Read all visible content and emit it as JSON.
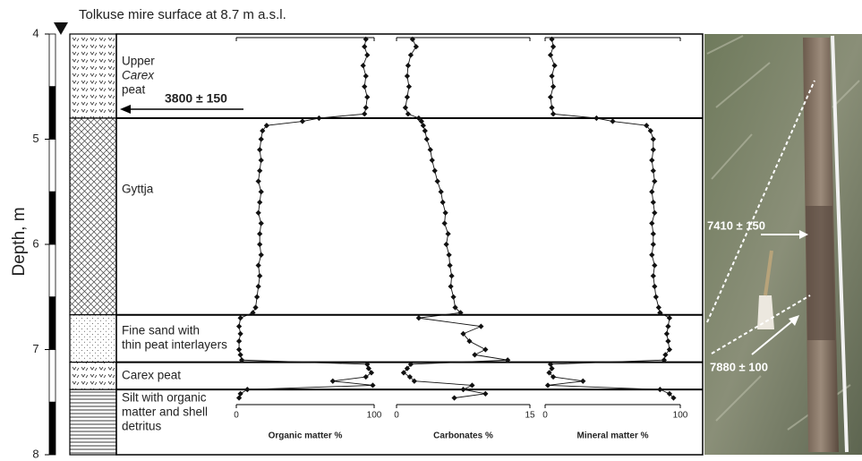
{
  "title": "Tolkuse mire surface at 8.7 m a.s.l.",
  "depth_axis": {
    "label": "Depth, m",
    "lim": [
      4,
      8
    ],
    "ticks": [
      4,
      5,
      6,
      7,
      8
    ]
  },
  "layers": [
    {
      "top": 4,
      "bottom": 4.8,
      "label_lines": [
        "Upper",
        "Carex",
        "peat"
      ]
    },
    {
      "top": 4.8,
      "bottom": 6.67,
      "label_lines": [
        "Gyttja"
      ]
    },
    {
      "top": 6.67,
      "bottom": 7.12,
      "label_lines": [
        "Fine sand with",
        "thin peat interlayers"
      ]
    },
    {
      "top": 7.12,
      "bottom": 7.38,
      "label_lines": [
        "Carex peat"
      ]
    },
    {
      "top": 7.38,
      "bottom": 8,
      "label_lines": [
        "Silt with organic",
        "matter and shell",
        "detritus"
      ]
    }
  ],
  "dates": [
    "3800 ± 150",
    "7410 ± 150",
    "7880 ± 100"
  ],
  "chart_data": [
    {
      "type": "line",
      "xlabel": "Organic matter %",
      "color": "#111",
      "ylim": [
        0,
        100
      ],
      "yticks": [
        0,
        100
      ],
      "x": [
        4.05,
        4.12,
        4.2,
        4.3,
        4.4,
        4.5,
        4.6,
        4.7,
        4.76,
        4.8,
        4.83,
        4.87,
        4.92,
        5.0,
        5.1,
        5.2,
        5.3,
        5.4,
        5.5,
        5.6,
        5.7,
        5.8,
        5.9,
        6.0,
        6.1,
        6.2,
        6.3,
        6.4,
        6.5,
        6.6,
        6.65,
        6.7,
        6.78,
        6.85,
        6.92,
        7.0,
        7.05,
        7.1,
        7.14,
        7.18,
        7.22,
        7.26,
        7.3,
        7.34,
        7.38,
        7.42,
        7.46
      ],
      "values": [
        94,
        93,
        95,
        92,
        94,
        93,
        95,
        94,
        93,
        60,
        48,
        22,
        19,
        18,
        17,
        18,
        17,
        16,
        18,
        17,
        16,
        18,
        17,
        17,
        18,
        16,
        17,
        16,
        15,
        14,
        12,
        3,
        2,
        3,
        2,
        2,
        3,
        4,
        95,
        96,
        98,
        94,
        70,
        99,
        8,
        3,
        2
      ]
    },
    {
      "type": "line",
      "xlabel": "Carbonates %",
      "color": "#111",
      "ylim": [
        0,
        15
      ],
      "yticks": [
        0,
        15
      ],
      "x": [
        4.05,
        4.12,
        4.2,
        4.3,
        4.4,
        4.5,
        4.6,
        4.7,
        4.76,
        4.8,
        4.83,
        4.87,
        4.92,
        5.0,
        5.1,
        5.2,
        5.3,
        5.4,
        5.5,
        5.6,
        5.7,
        5.8,
        5.9,
        6.0,
        6.1,
        6.2,
        6.3,
        6.4,
        6.5,
        6.6,
        6.65,
        6.7,
        6.78,
        6.85,
        6.92,
        7.0,
        7.05,
        7.1,
        7.14,
        7.18,
        7.22,
        7.26,
        7.3,
        7.34,
        7.38,
        7.42,
        7.46
      ],
      "values": [
        1.8,
        2.2,
        1.6,
        1.3,
        1.2,
        1.4,
        1.2,
        1.0,
        1.3,
        2.5,
        2.8,
        3.0,
        3.2,
        3.4,
        3.8,
        4.0,
        4.3,
        4.6,
        5.0,
        5.2,
        5.5,
        5.4,
        5.8,
        5.6,
        5.9,
        6.0,
        6.2,
        6.1,
        6.4,
        6.6,
        7.2,
        2.5,
        9.5,
        7.5,
        8.2,
        10.0,
        8.8,
        12.5,
        1.6,
        1.2,
        0.8,
        1.5,
        2.0,
        8.5,
        7.5,
        10.0,
        6.5
      ]
    },
    {
      "type": "line",
      "xlabel": "Mineral matter %",
      "color": "#111",
      "ylim": [
        0,
        100
      ],
      "yticks": [
        0,
        100
      ],
      "x": [
        4.05,
        4.12,
        4.2,
        4.3,
        4.4,
        4.5,
        4.6,
        4.7,
        4.76,
        4.8,
        4.83,
        4.87,
        4.92,
        5.0,
        5.1,
        5.2,
        5.3,
        5.4,
        5.5,
        5.6,
        5.7,
        5.8,
        5.9,
        6.0,
        6.1,
        6.2,
        6.3,
        6.4,
        6.5,
        6.6,
        6.65,
        6.7,
        6.78,
        6.85,
        6.92,
        7.0,
        7.05,
        7.1,
        7.14,
        7.18,
        7.22,
        7.26,
        7.3,
        7.34,
        7.38,
        7.42,
        7.46
      ],
      "values": [
        5,
        6,
        4,
        7,
        5,
        6,
        4,
        5,
        6,
        38,
        50,
        75,
        78,
        80,
        80,
        79,
        80,
        81,
        79,
        80,
        81,
        79,
        80,
        80,
        79,
        81,
        80,
        81,
        82,
        84,
        85,
        92,
        91,
        90,
        91,
        92,
        89,
        88,
        4,
        5,
        3,
        6,
        28,
        2,
        85,
        92,
        95
      ]
    }
  ]
}
